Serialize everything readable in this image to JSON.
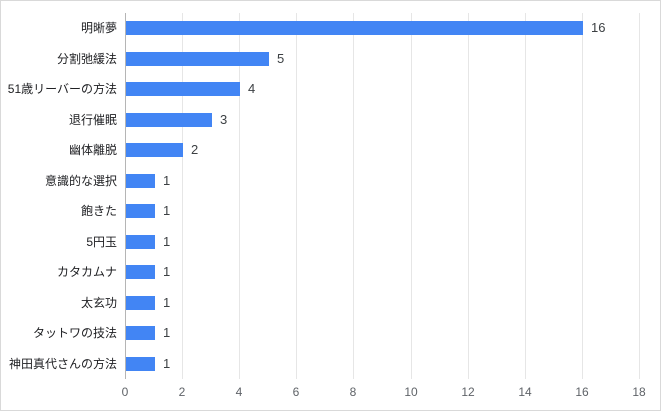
{
  "chart_data": {
    "type": "bar",
    "orientation": "horizontal",
    "title": "",
    "xlabel": "",
    "ylabel": "",
    "categories": [
      "明晰夢",
      "分割弛緩法",
      "51歳リーバーの方法",
      "退行催眠",
      "幽体離脱",
      "意識的な選択",
      "飽きた",
      "5円玉",
      "カタカムナ",
      "太玄功",
      "タットワの技法",
      "神田真代さんの方法"
    ],
    "values": [
      16,
      5,
      4,
      3,
      2,
      1,
      1,
      1,
      1,
      1,
      1,
      1
    ],
    "data_labels": [
      "16",
      "5",
      "4",
      "3",
      "2",
      "1",
      "1",
      "1",
      "1",
      "1",
      "1",
      "1"
    ],
    "x_ticks": [
      "0",
      "2",
      "4",
      "6",
      "8",
      "10",
      "12",
      "14",
      "16",
      "18"
    ],
    "xlim": [
      0,
      18
    ],
    "grid": true,
    "legend": "none",
    "colors": {
      "bar": "#4285f4",
      "gridline": "#e6e6e6",
      "baseline": "#b5b5b5",
      "category_label": "#202124",
      "value_label": "#3c4043",
      "tick_label": "#5f6368",
      "background": "#ffffff",
      "border": "#d9d9d9"
    }
  }
}
